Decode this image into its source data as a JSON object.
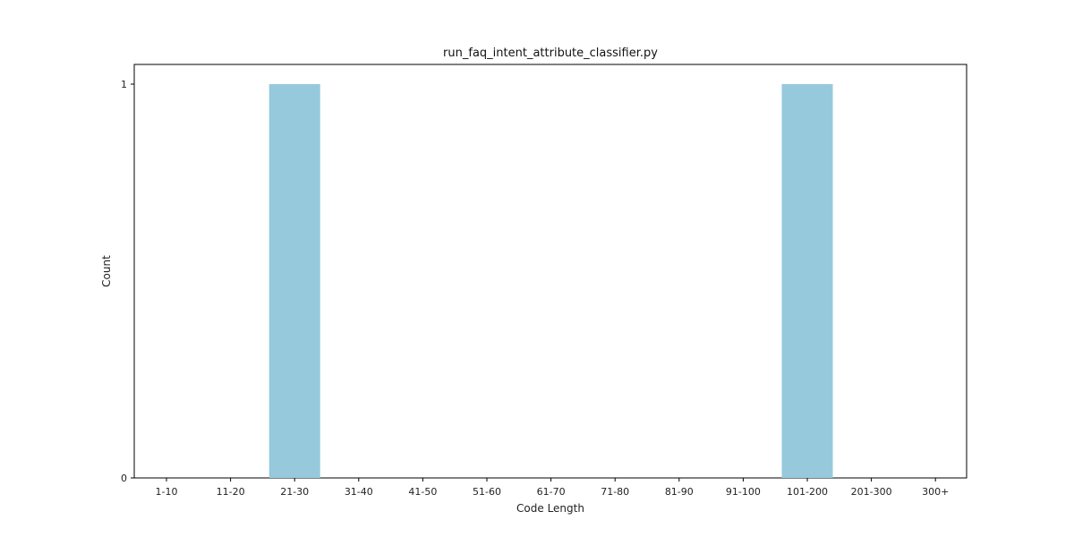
{
  "chart_data": {
    "type": "bar",
    "title": "run_faq_intent_attribute_classifier.py",
    "xlabel": "Code Length",
    "ylabel": "Count",
    "categories": [
      "1-10",
      "11-20",
      "21-30",
      "31-40",
      "41-50",
      "51-60",
      "61-70",
      "71-80",
      "81-90",
      "91-100",
      "101-200",
      "201-300",
      "300+"
    ],
    "values": [
      0,
      0,
      1,
      0,
      0,
      0,
      0,
      0,
      0,
      0,
      1,
      0,
      0
    ],
    "ylim": [
      0,
      1
    ],
    "yticks": [
      "0",
      "1"
    ],
    "grid": false,
    "bar_color": "#96c9dc"
  }
}
